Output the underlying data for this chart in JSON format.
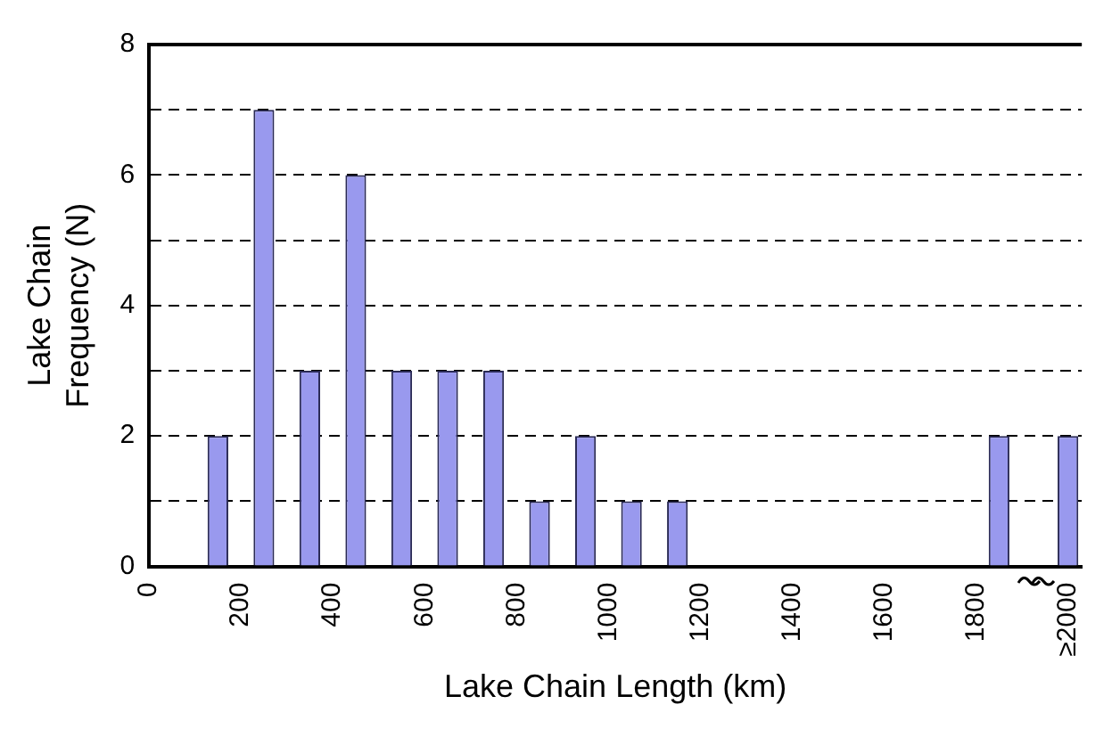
{
  "chart_data": {
    "type": "bar",
    "xlabel": "Lake Chain Length (km)",
    "ylabel": "Lake Chain Frequency (N)",
    "x": [
      150,
      250,
      350,
      450,
      550,
      650,
      750,
      850,
      950,
      1050,
      1150,
      1850,
      2000
    ],
    "values": [
      2,
      7,
      3,
      6,
      3,
      3,
      3,
      1,
      2,
      1,
      1,
      2,
      2
    ],
    "color": "#9999ee",
    "xlim": [
      0,
      2030
    ],
    "xticks": [
      0,
      200,
      400,
      600,
      800,
      1000,
      1200,
      1400,
      1600,
      1800,
      {
        "value": 2000,
        "label": "≥2000"
      }
    ],
    "ylim": [
      0,
      8
    ],
    "yticks": [
      0,
      {
        "value": 1,
        "label": null
      },
      2,
      {
        "value": 3,
        "label": null
      },
      4,
      {
        "value": 5,
        "label": null
      },
      6,
      {
        "value": 7,
        "label": null
      },
      8
    ],
    "grid": "y",
    "line_style": "dashed",
    "legend": false
  }
}
